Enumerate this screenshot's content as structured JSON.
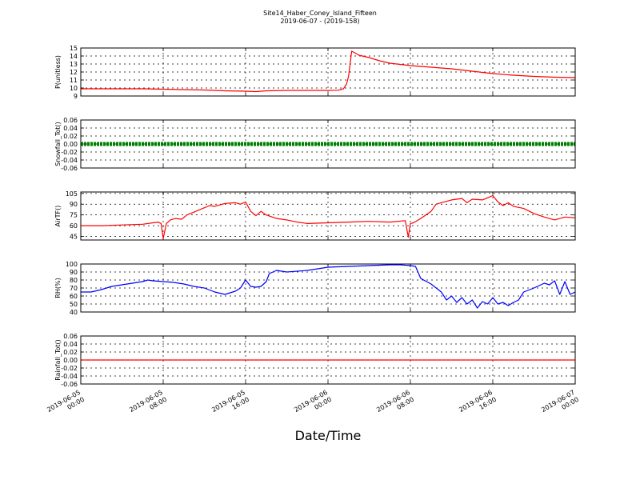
{
  "title": "Site14_Haber_Coney_Island_Fifteen",
  "subtitle": "2019-06-07 - (2019-158)",
  "xlabel": "Date/Time",
  "x_ticks": [
    {
      "t": 0,
      "line1": "2019-06-05",
      "line2": "00:00"
    },
    {
      "t": 8,
      "line1": "2019-06-05",
      "line2": "08:00"
    },
    {
      "t": 16,
      "line1": "2019-06-05",
      "line2": "16:00"
    },
    {
      "t": 24,
      "line1": "2019-06-06",
      "line2": "00:00"
    },
    {
      "t": 32,
      "line1": "2019-06-06",
      "line2": "08:00"
    },
    {
      "t": 40,
      "line1": "2019-06-06",
      "line2": "16:00"
    },
    {
      "t": 48,
      "line1": "2019-06-07",
      "line2": "00:00"
    }
  ],
  "chart_data": [
    {
      "type": "line",
      "ylabel": "P(unitless)",
      "ylim": [
        9,
        15
      ],
      "yticks": [
        9,
        10,
        11,
        12,
        13,
        14,
        15
      ],
      "grid": true,
      "series": [
        {
          "color": "#ff0000",
          "x": [
            0,
            4,
            6,
            8,
            10,
            12,
            14,
            16,
            17,
            18,
            20,
            22,
            24,
            25,
            25.5,
            25.8,
            26,
            26.3,
            26.6,
            27,
            28,
            29,
            30,
            32,
            34,
            36,
            38,
            40,
            42,
            44,
            46,
            48
          ],
          "y": [
            9.9,
            9.9,
            9.9,
            9.85,
            9.8,
            9.75,
            9.65,
            9.6,
            9.55,
            9.65,
            9.7,
            9.7,
            9.7,
            9.72,
            9.9,
            10.5,
            11.5,
            14.6,
            14.4,
            14.1,
            13.8,
            13.4,
            13.1,
            12.8,
            12.6,
            12.4,
            12.1,
            11.8,
            11.6,
            11.45,
            11.35,
            11.3
          ]
        }
      ]
    },
    {
      "type": "line",
      "ylabel": "Snowfall_Tot()",
      "ylim": [
        -0.06,
        0.06
      ],
      "yticks": [
        -0.06,
        -0.04,
        -0.02,
        0.0,
        0.02,
        0.04,
        0.06
      ],
      "grid": true,
      "series": [
        {
          "color": "#008000",
          "style": "markers",
          "x": [
            0,
            48
          ],
          "y": [
            0,
            0
          ]
        }
      ]
    },
    {
      "type": "line",
      "ylabel": "AirTF()",
      "ylim": [
        40,
        107
      ],
      "yticks": [
        45,
        60,
        75,
        90,
        105
      ],
      "grid": true,
      "series": [
        {
          "color": "#ff0000",
          "x": [
            0,
            2,
            4,
            6,
            7.5,
            7.8,
            8,
            8.3,
            8.7,
            9.2,
            9.8,
            10.3,
            11,
            12,
            12.5,
            13,
            14,
            15,
            15.5,
            16,
            16.5,
            17,
            17.5,
            18,
            19,
            20,
            21,
            22,
            24,
            26,
            28,
            30,
            31.5,
            31.8,
            32,
            32.3,
            33,
            34,
            34.5,
            35,
            36,
            37,
            37.5,
            38,
            39,
            39.5,
            40,
            40.5,
            41,
            41.5,
            42,
            43,
            44,
            45,
            46,
            47,
            48
          ],
          "y": [
            60,
            60,
            61,
            62,
            65,
            63,
            42,
            63,
            68,
            70,
            69,
            75,
            79,
            85,
            88,
            87,
            91,
            92,
            90,
            93,
            80,
            74,
            80,
            75,
            70,
            68,
            65,
            63,
            64,
            65,
            66,
            65,
            67,
            44,
            63,
            64,
            70,
            80,
            90,
            92,
            96,
            98,
            92,
            97,
            96,
            99,
            102,
            93,
            88,
            92,
            87,
            84,
            77,
            72,
            68,
            72,
            71
          ]
        }
      ]
    },
    {
      "type": "line",
      "ylabel": "RH(%)",
      "ylim": [
        40,
        100
      ],
      "yticks": [
        40,
        50,
        60,
        70,
        80,
        90,
        100
      ],
      "grid": true,
      "series": [
        {
          "color": "#0000ff",
          "x": [
            0,
            1,
            2,
            3,
            4,
            5,
            6,
            6.5,
            7,
            8,
            9,
            10,
            11,
            12,
            13,
            14,
            15,
            15.5,
            16,
            16.5,
            17,
            17.5,
            18,
            18.3,
            19,
            20,
            22,
            24,
            26,
            28,
            30,
            31,
            32,
            32.5,
            33,
            34,
            34.5,
            35,
            35.5,
            36,
            36.5,
            37,
            37.5,
            38,
            38.5,
            39,
            39.5,
            40,
            40.5,
            41,
            41.5,
            42,
            42.5,
            43,
            44,
            45,
            45.5,
            46,
            46.5,
            47,
            47.5,
            48
          ],
          "y": [
            65,
            65,
            68,
            72,
            74,
            76,
            78,
            80,
            79,
            78,
            77,
            75,
            72,
            70,
            65,
            62,
            66,
            70,
            80,
            72,
            71,
            72,
            78,
            88,
            92,
            90,
            92,
            96,
            97,
            98,
            99,
            99,
            98,
            97,
            82,
            75,
            70,
            65,
            55,
            60,
            52,
            58,
            50,
            55,
            45,
            53,
            50,
            58,
            50,
            52,
            48,
            52,
            55,
            65,
            70,
            76,
            74,
            79,
            62,
            78,
            62,
            65
          ]
        }
      ]
    },
    {
      "type": "line",
      "ylabel": "Rainfall_Tot()",
      "ylim": [
        -0.06,
        0.06
      ],
      "yticks": [
        -0.06,
        -0.04,
        -0.02,
        0.0,
        0.02,
        0.04,
        0.06
      ],
      "grid": true,
      "series": [
        {
          "color": "#ff0000",
          "x": [
            0,
            48
          ],
          "y": [
            0,
            0
          ]
        }
      ]
    }
  ]
}
